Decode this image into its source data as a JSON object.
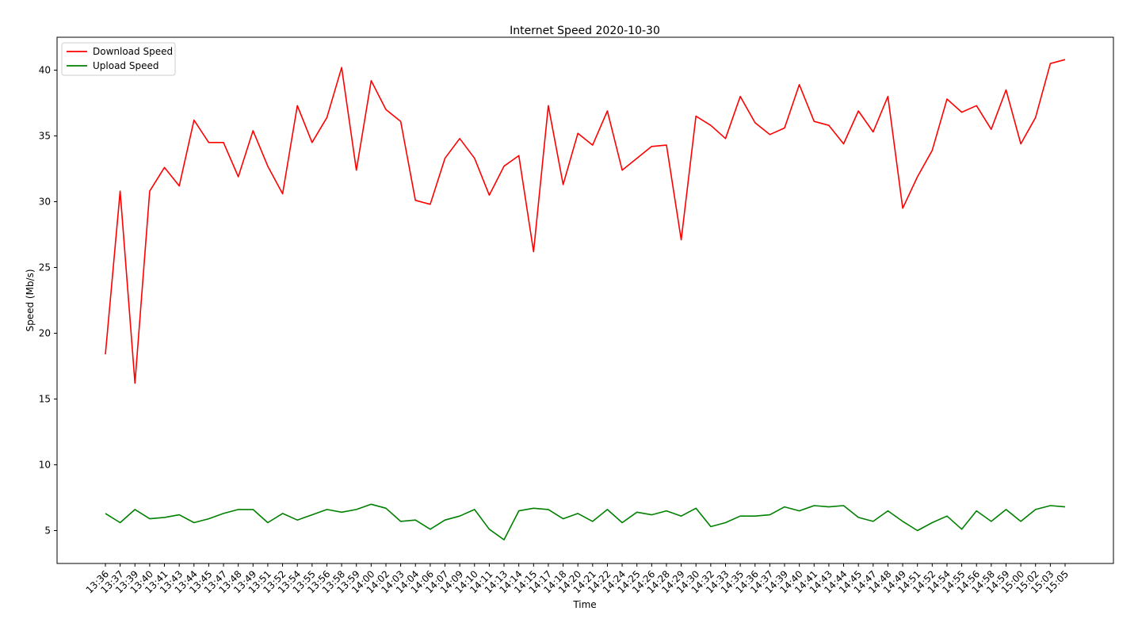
{
  "chart_data": {
    "type": "line",
    "title": "Internet Speed 2020-10-30",
    "xlabel": "Time",
    "ylabel": "Speed (Mb/s)",
    "ylim": [
      2.5,
      42.5
    ],
    "yticks": [
      5,
      10,
      15,
      20,
      25,
      30,
      35,
      40
    ],
    "grid": false,
    "legend": "upper left",
    "x": [
      "13:36",
      "13:37",
      "13:39",
      "13:40",
      "13:41",
      "13:43",
      "13:44",
      "13:45",
      "13:47",
      "13:48",
      "13:49",
      "13:51",
      "13:52",
      "13:54",
      "13:55",
      "13:56",
      "13:58",
      "13:59",
      "14:00",
      "14:02",
      "14:03",
      "14:04",
      "14:06",
      "14:07",
      "14:09",
      "14:10",
      "14:11",
      "14:13",
      "14:14",
      "14:15",
      "14:17",
      "14:18",
      "14:20",
      "14:21",
      "14:22",
      "14:24",
      "14:25",
      "14:26",
      "14:28",
      "14:29",
      "14:30",
      "14:32",
      "14:33",
      "14:35",
      "14:36",
      "14:37",
      "14:39",
      "14:40",
      "14:41",
      "14:43",
      "14:44",
      "14:45",
      "14:47",
      "14:48",
      "14:49",
      "14:51",
      "14:52",
      "14:54",
      "14:55",
      "14:56",
      "14:58",
      "14:59",
      "15:00",
      "15:02",
      "15:03",
      "15:05"
    ],
    "series": [
      {
        "name": "Download Speed",
        "color": "#ff0000",
        "values": [
          18.4,
          30.8,
          16.2,
          30.8,
          32.6,
          31.2,
          36.2,
          34.5,
          34.5,
          31.9,
          35.4,
          32.7,
          30.6,
          37.3,
          34.5,
          36.4,
          40.2,
          32.4,
          39.2,
          37.0,
          36.1,
          30.1,
          29.8,
          33.3,
          34.8,
          33.3,
          30.5,
          32.7,
          33.5,
          26.2,
          37.3,
          31.3,
          35.2,
          34.3,
          36.9,
          32.4,
          33.3,
          34.2,
          34.3,
          27.1,
          36.5,
          35.8,
          34.8,
          38.0,
          36.0,
          35.1,
          35.6,
          38.9,
          36.1,
          35.8,
          34.4,
          36.9,
          35.3,
          38.0,
          29.5,
          31.9,
          33.9,
          37.8,
          36.8,
          37.3,
          35.5,
          38.5,
          34.4,
          36.4,
          40.5,
          40.8
        ]
      },
      {
        "name": "Upload Speed",
        "color": "#008000",
        "values": [
          6.3,
          5.6,
          6.6,
          5.9,
          6.0,
          6.2,
          5.6,
          5.9,
          6.3,
          6.6,
          6.6,
          5.6,
          6.3,
          5.8,
          6.2,
          6.6,
          6.4,
          6.6,
          7.0,
          6.7,
          5.7,
          5.8,
          5.1,
          5.8,
          6.1,
          6.6,
          5.1,
          4.3,
          6.5,
          6.7,
          6.6,
          5.9,
          6.3,
          5.7,
          6.6,
          5.6,
          6.4,
          6.2,
          6.5,
          6.1,
          6.7,
          5.3,
          5.6,
          6.1,
          6.1,
          6.2,
          6.8,
          6.5,
          6.9,
          6.8,
          6.9,
          6.0,
          5.7,
          6.5,
          5.7,
          5.0,
          5.6,
          6.1,
          5.1,
          6.5,
          5.7,
          6.6,
          5.7,
          6.6,
          6.9,
          6.8
        ]
      }
    ]
  }
}
